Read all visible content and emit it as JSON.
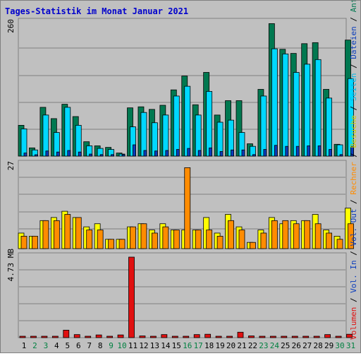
{
  "title": "Tages-Statistik im Monat Januar 2021",
  "colors": {
    "background": "#c0c0c0",
    "title": "#0000cc",
    "anfragen": "#007850",
    "dateien": "#00d8ff",
    "seiten": "#0a3cbc",
    "besuche": "#ffff00",
    "rechner": "#ff8c00",
    "volumen": "#e01010",
    "weekend_label": "#008040",
    "weekday_label": "#000000"
  },
  "chart_data": [
    {
      "type": "bar",
      "panel": "requests",
      "ymax_label": "260",
      "ymax": 260,
      "x": [
        "1",
        "2",
        "3",
        "4",
        "5",
        "6",
        "7",
        "8",
        "9",
        "10",
        "11",
        "12",
        "13",
        "14",
        "15",
        "16",
        "17",
        "18",
        "19",
        "20",
        "21",
        "22",
        "23",
        "24",
        "25",
        "26",
        "27",
        "28",
        "29",
        "30",
        "31"
      ],
      "series": [
        {
          "name": "Anfragen",
          "values": [
            60,
            16,
            95,
            73,
            101,
            77,
            28,
            20,
            17,
            6,
            94,
            96,
            91,
            99,
            129,
            156,
            100,
            163,
            80,
            108,
            108,
            24,
            130,
            258,
            208,
            200,
            219,
            221,
            130,
            23,
            226
          ]
        },
        {
          "name": "Dateien",
          "values": [
            53,
            12,
            80,
            46,
            95,
            60,
            20,
            15,
            13,
            4,
            57,
            85,
            65,
            80,
            117,
            136,
            80,
            126,
            66,
            70,
            46,
            19,
            117,
            209,
            199,
            163,
            179,
            188,
            113,
            22,
            151
          ]
        },
        {
          "name": "Seiten",
          "values": [
            6,
            2,
            10,
            8,
            11,
            8,
            4,
            3,
            3,
            1,
            22,
            11,
            10,
            11,
            13,
            15,
            11,
            16,
            9,
            12,
            12,
            3,
            13,
            21,
            19,
            19,
            20,
            20,
            13,
            3,
            19
          ]
        }
      ]
    },
    {
      "type": "bar",
      "panel": "visits",
      "ymax_label": "27",
      "ymax": 27,
      "x": [
        "1",
        "2",
        "3",
        "4",
        "5",
        "6",
        "7",
        "8",
        "9",
        "10",
        "11",
        "12",
        "13",
        "14",
        "15",
        "16",
        "17",
        "18",
        "19",
        "20",
        "21",
        "22",
        "23",
        "24",
        "25",
        "26",
        "27",
        "28",
        "29",
        "30",
        "31"
      ],
      "series": [
        {
          "name": "Besuche",
          "values": [
            5,
            4,
            9,
            10,
            12,
            10,
            7,
            8,
            3,
            3,
            7,
            8,
            6,
            8,
            6,
            6,
            6,
            10,
            5,
            11,
            7,
            2,
            6,
            10,
            8,
            9,
            9,
            11,
            6,
            4,
            13
          ]
        },
        {
          "name": "Rechner",
          "values": [
            4,
            4,
            9,
            9,
            11,
            10,
            6,
            6,
            3,
            3,
            7,
            8,
            5,
            7,
            6,
            26,
            6,
            6,
            4,
            9,
            6,
            2,
            5,
            9,
            9,
            8,
            9,
            8,
            5,
            3,
            8
          ]
        }
      ]
    },
    {
      "type": "bar",
      "panel": "volume",
      "ymax_label": "4.73 MB",
      "ymax": 4.73,
      "unit": "MB",
      "x": [
        "1",
        "2",
        "3",
        "4",
        "5",
        "6",
        "7",
        "8",
        "9",
        "10",
        "11",
        "12",
        "13",
        "14",
        "15",
        "16",
        "17",
        "18",
        "19",
        "20",
        "21",
        "22",
        "23",
        "24",
        "25",
        "26",
        "27",
        "28",
        "29",
        "30",
        "31"
      ],
      "series": [
        {
          "name": "Volumen",
          "values": [
            0.02,
            0.02,
            0.04,
            0.04,
            0.44,
            0.18,
            0.02,
            0.16,
            0.02,
            0.16,
            4.73,
            0.1,
            0.02,
            0.18,
            0.02,
            0.02,
            0.18,
            0.2,
            0.02,
            0.02,
            0.32,
            0.1,
            0.02,
            0.02,
            0.06,
            0.06,
            0.06,
            0.06,
            0.18,
            0.02,
            0.2
          ]
        }
      ]
    }
  ],
  "right_legend": {
    "anfragen": "Anfragen",
    "dateien": "Dateien",
    "seiten": "Seiten",
    "besuche": "Besuche",
    "rechner": "Rechner",
    "vol_out": "Vol. Out",
    "vol_in": "Vol. In",
    "volumen": "Volumen",
    "separator": "/"
  },
  "weekend_days": [
    2,
    3,
    9,
    10,
    16,
    17,
    23,
    24,
    30,
    31
  ]
}
